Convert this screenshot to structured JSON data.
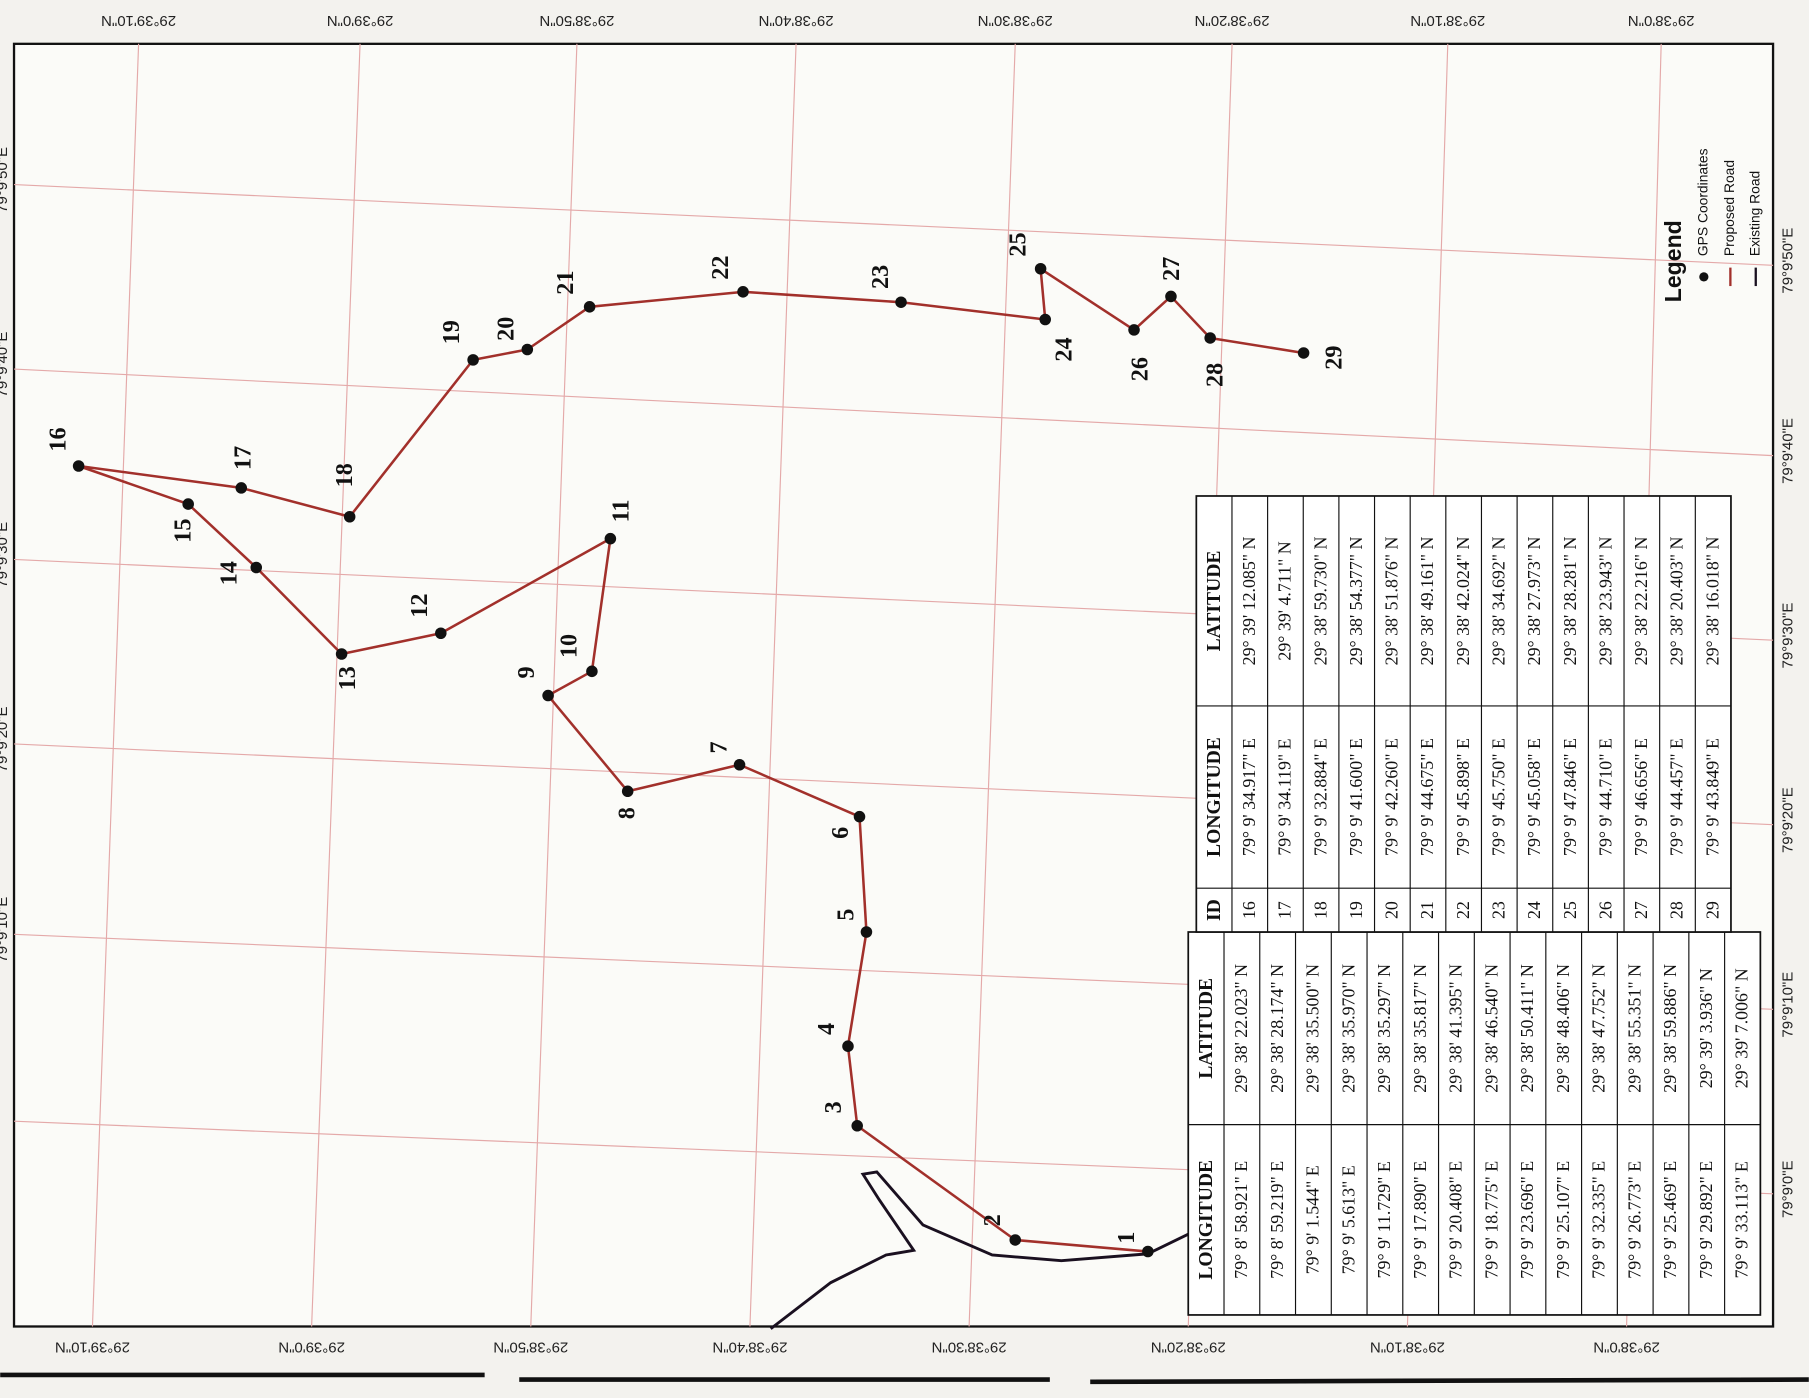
{
  "map": {
    "lat_labels": [
      "29°39'10\"N",
      "29°39'0\"N",
      "29°38'50\"N",
      "29°38'40\"N",
      "29°38'30\"N",
      "29°38'20\"N",
      "29°38'10\"N",
      "29°38'0\"N"
    ],
    "lon_labels": [
      "79°9'50\"E",
      "79°9'40\"E",
      "79°9'30\"E",
      "79°9'20\"E",
      "79°9'10\"E",
      "79°9'0\"E"
    ],
    "legend": {
      "title": "Legend",
      "items": [
        "GPS Coordinates",
        "Proposed Road",
        "Existing Road"
      ]
    },
    "points": [
      "1",
      "2",
      "3",
      "4",
      "5",
      "6",
      "7",
      "8",
      "9",
      "10",
      "11",
      "12",
      "13",
      "14",
      "15",
      "16",
      "17",
      "18",
      "19",
      "20",
      "21",
      "22",
      "23",
      "24",
      "25",
      "26",
      "27",
      "28",
      "29"
    ]
  },
  "table_left": {
    "header": [
      "LONGITUDE",
      "LATITUDE"
    ],
    "rows": [
      [
        "79° 8' 58.921\" E",
        "29° 38' 22.023\" N"
      ],
      [
        "79° 8' 59.219\" E",
        "29° 38' 28.174\" N"
      ],
      [
        "79° 9' 1.544\" E",
        "29° 38' 35.500\" N"
      ],
      [
        "79° 9' 5.613\" E",
        "29° 38' 35.970\" N"
      ],
      [
        "79° 9' 11.729\" E",
        "29° 38' 35.297\" N"
      ],
      [
        "79° 9' 17.890\" E",
        "29° 38' 35.817\" N"
      ],
      [
        "79° 9' 20.408\" E",
        "29° 38' 41.395\" N"
      ],
      [
        "79° 9' 18.775\" E",
        "29° 38' 46.540\" N"
      ],
      [
        "79° 9' 23.696\" E",
        "29° 38' 50.411\" N"
      ],
      [
        "79° 9' 25.107\" E",
        "29° 38' 48.406\" N"
      ],
      [
        "79° 9' 32.335\" E",
        "29° 38' 47.752\" N"
      ],
      [
        "79° 9' 26.773\" E",
        "29° 38' 55.351\" N"
      ],
      [
        "79° 9' 25.469\" E",
        "29° 38' 59.886\" N"
      ],
      [
        "79° 9' 29.892\" E",
        "29° 39' 3.936\" N"
      ],
      [
        "79° 9' 33.113\" E",
        "29° 39' 7.006\" N"
      ]
    ]
  },
  "table_right": {
    "header": [
      "ID",
      "LONGITUDE",
      "LATITUDE"
    ],
    "rows": [
      [
        "16",
        "79° 9' 34.917\" E",
        "29° 39' 12.085\" N"
      ],
      [
        "17",
        "79° 9' 34.119\" E",
        "29° 39' 4.711\" N"
      ],
      [
        "18",
        "79° 9' 32.884\" E",
        "29° 38' 59.730\" N"
      ],
      [
        "19",
        "79° 9' 41.600\" E",
        "29° 38' 54.377\" N"
      ],
      [
        "20",
        "79° 9' 42.260\" E",
        "29° 38' 51.876\" N"
      ],
      [
        "21",
        "79° 9' 44.675\" E",
        "29° 38' 49.161\" N"
      ],
      [
        "22",
        "79° 9' 45.898\" E",
        "29° 38' 42.024\" N"
      ],
      [
        "23",
        "79° 9' 45.750\" E",
        "29° 38' 34.692\" N"
      ],
      [
        "24",
        "79° 9' 45.058\" E",
        "29° 38' 27.973\" N"
      ],
      [
        "25",
        "79° 9' 47.846\" E",
        "29° 38' 28.281\" N"
      ],
      [
        "26",
        "79° 9' 44.710\" E",
        "29° 38' 23.943\" N"
      ],
      [
        "27",
        "79° 9' 46.656\" E",
        "29° 38' 22.216\" N"
      ],
      [
        "28",
        "79° 9' 44.457\" E",
        "29° 38' 20.403\" N"
      ],
      [
        "29",
        "79° 9' 43.849\" E",
        "29° 38' 16.018\" N"
      ]
    ]
  }
}
